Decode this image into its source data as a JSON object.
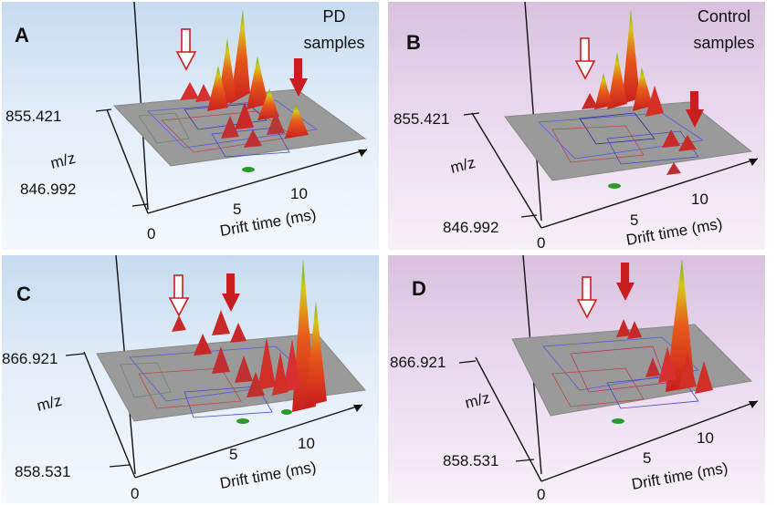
{
  "chart_data": [
    {
      "type": "other",
      "panel": "A",
      "caption": [
        "PD",
        "samples"
      ],
      "xlabel": "Drift time (ms)",
      "ylabel": "m/z",
      "x_ticks": [
        "0",
        "5",
        "10"
      ],
      "y_ticks": [
        "855.421",
        "846.992"
      ],
      "colors": {
        "background": "#d6e5f4"
      }
    },
    {
      "type": "other",
      "panel": "B",
      "caption": [
        "Control",
        "samples"
      ],
      "xlabel": "Drift time (ms)",
      "ylabel": "m/z",
      "x_ticks": [
        "0",
        "5",
        "10"
      ],
      "y_ticks": [
        "855.421",
        "846.992"
      ],
      "colors": {
        "background": "#e6d5ea"
      }
    },
    {
      "type": "other",
      "panel": "C",
      "caption": [],
      "xlabel": "Drift time (ms)",
      "ylabel": "m/z",
      "x_ticks": [
        "0",
        "5",
        "10"
      ],
      "y_ticks": [
        "866.921",
        "858.531"
      ],
      "colors": {
        "background": "#d6e5f4"
      }
    },
    {
      "type": "other",
      "panel": "D",
      "caption": [],
      "xlabel": "Drift time (ms)",
      "ylabel": "m/z",
      "x_ticks": [
        "0",
        "5",
        "10"
      ],
      "y_ticks": [
        "866.921",
        "858.531"
      ],
      "colors": {
        "background": "#e6d5ea"
      }
    }
  ]
}
